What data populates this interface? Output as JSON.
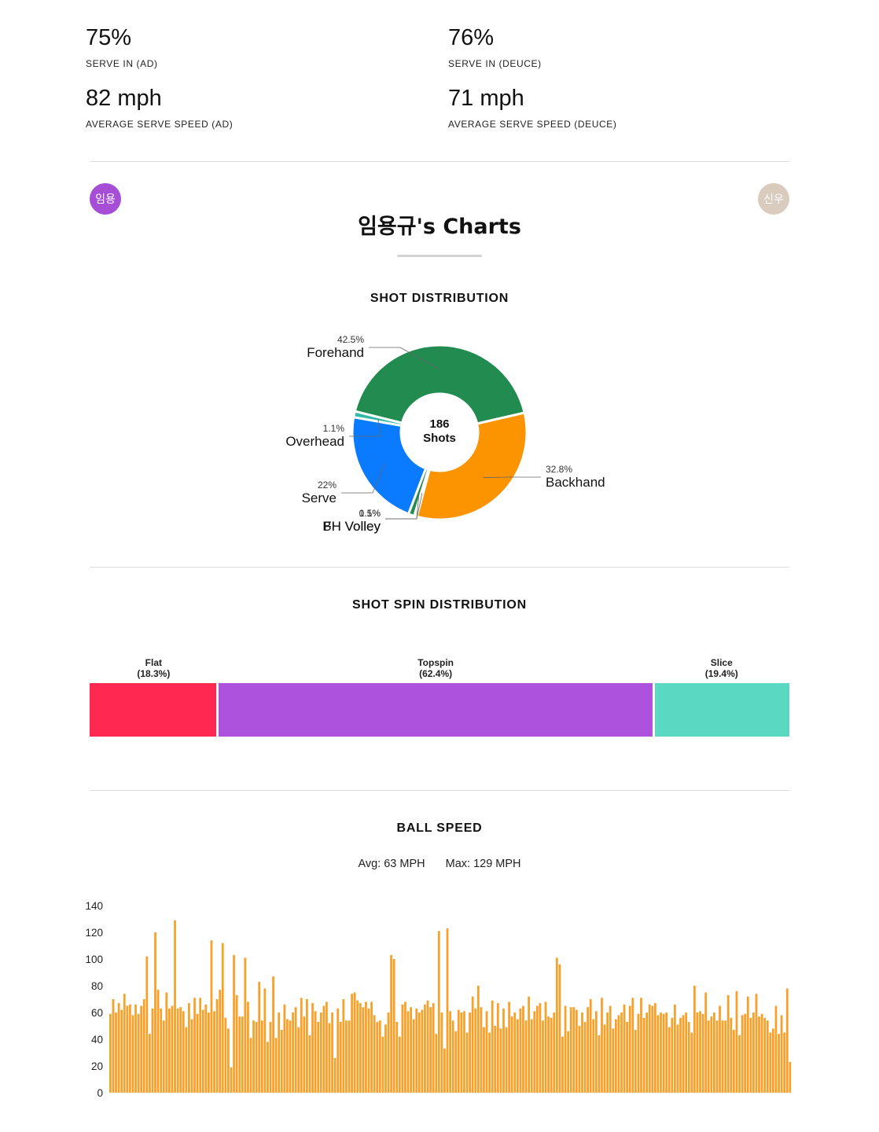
{
  "stats": [
    {
      "value": "75%",
      "label": "SERVE IN (AD)"
    },
    {
      "value": "76%",
      "label": "SERVE IN (DEUCE)"
    },
    {
      "value": "82 mph",
      "label": "AVERAGE SERVE SPEED (AD)"
    },
    {
      "value": "71 mph",
      "label": "AVERAGE SERVE SPEED (DEUCE)"
    }
  ],
  "players": {
    "left": {
      "initials": "임용",
      "color": "#a64fd6"
    },
    "right": {
      "initials": "신우",
      "color": "#d9cbbd"
    }
  },
  "page_title": "임용규's Charts",
  "colors": {
    "forehand": "#228b50",
    "backhand": "#fb9400",
    "serve": "#0a7bff",
    "overhead": "#2fb9a8",
    "volley": "#f2c200",
    "flat": "#ff2851",
    "topspin": "#ad52dd",
    "slice": "#5ad8c2",
    "speed_bar": "#f7a12a"
  },
  "chart_data": [
    {
      "type": "pie",
      "title": "SHOT DISTRIBUTION",
      "center_value": "186",
      "center_label": "Shots",
      "slices": [
        {
          "name": "Forehand",
          "label": "42.5%",
          "value": 42.5,
          "color_key": "forehand"
        },
        {
          "name": "Backhand",
          "label": "32.8%",
          "value": 32.8,
          "color_key": "backhand"
        },
        {
          "name": "FH Volley",
          "label": "0.5%",
          "value": 0.5,
          "color_key": "volley"
        },
        {
          "name": "BH Volley",
          "label": "1.1%",
          "value": 1.1,
          "color_key": "forehand"
        },
        {
          "name": "Serve",
          "label": "22%",
          "value": 22,
          "color_key": "serve"
        },
        {
          "name": "Overhead",
          "label": "1.1%",
          "value": 1.1,
          "color_key": "overhead"
        }
      ]
    },
    {
      "type": "bar",
      "title": "SHOT SPIN DISTRIBUTION",
      "orientation": "stacked-horizontal",
      "segments": [
        {
          "name": "Flat",
          "label": "(18.3%)",
          "value": 18.3,
          "color_key": "flat"
        },
        {
          "name": "Topspin",
          "label": "(62.4%)",
          "value": 62.4,
          "color_key": "topspin"
        },
        {
          "name": "Slice",
          "label": "(19.4%)",
          "value": 19.4,
          "color_key": "slice"
        }
      ]
    },
    {
      "type": "bar",
      "title": "BALL SPEED",
      "avg_text": "Avg: 63 MPH",
      "max_text": "Max: 129 MPH",
      "ylim": [
        0,
        140
      ],
      "yticks": [
        0,
        20,
        40,
        60,
        80,
        100,
        120,
        140
      ],
      "grid": false,
      "values": [
        59,
        70,
        60,
        67,
        62,
        74,
        65,
        66,
        58,
        66,
        59,
        65,
        70,
        102,
        44,
        63,
        120,
        77,
        63,
        54,
        75,
        63,
        65,
        129,
        63,
        64,
        61,
        49,
        67,
        55,
        71,
        59,
        71,
        62,
        66,
        60,
        114,
        61,
        70,
        77,
        112,
        56,
        48,
        19,
        103,
        73,
        57,
        57,
        101,
        68,
        41,
        54,
        53,
        83,
        54,
        78,
        38,
        53,
        87,
        41,
        60,
        47,
        66,
        55,
        54,
        60,
        64,
        49,
        71,
        57,
        70,
        43,
        67,
        61,
        53,
        60,
        65,
        68,
        52,
        60,
        26,
        63,
        53,
        70,
        54,
        54,
        74,
        75,
        69,
        67,
        64,
        68,
        63,
        68,
        58,
        53,
        54,
        42,
        51,
        60,
        103,
        100,
        53,
        42,
        66,
        68,
        61,
        64,
        55,
        63,
        60,
        62,
        66,
        69,
        64,
        67,
        44,
        121,
        60,
        33,
        123,
        61,
        54,
        46,
        62,
        60,
        61,
        45,
        60,
        72,
        63,
        80,
        64,
        49,
        61,
        45,
        69,
        50,
        67,
        48,
        63,
        49,
        68,
        57,
        60,
        55,
        63,
        65,
        54,
        72,
        55,
        61,
        65,
        67,
        54,
        68,
        57,
        56,
        60,
        101,
        96,
        42,
        65,
        46,
        64,
        64,
        62,
        50,
        60,
        53,
        64,
        70,
        55,
        61,
        43,
        71,
        51,
        60,
        65,
        48,
        55,
        58,
        60,
        66,
        53,
        65,
        71,
        47,
        59,
        71,
        56,
        60,
        66,
        65,
        67,
        58,
        60,
        59,
        60,
        49,
        56,
        66,
        51,
        56,
        58,
        60,
        53,
        45,
        80,
        60,
        61,
        59,
        75,
        54,
        57,
        60,
        54,
        65,
        54,
        54,
        73,
        56,
        47,
        76,
        43,
        58,
        59,
        72,
        56,
        60,
        74,
        57,
        59,
        56,
        54,
        45,
        48,
        65,
        44,
        58,
        45,
        78,
        23
      ]
    }
  ]
}
